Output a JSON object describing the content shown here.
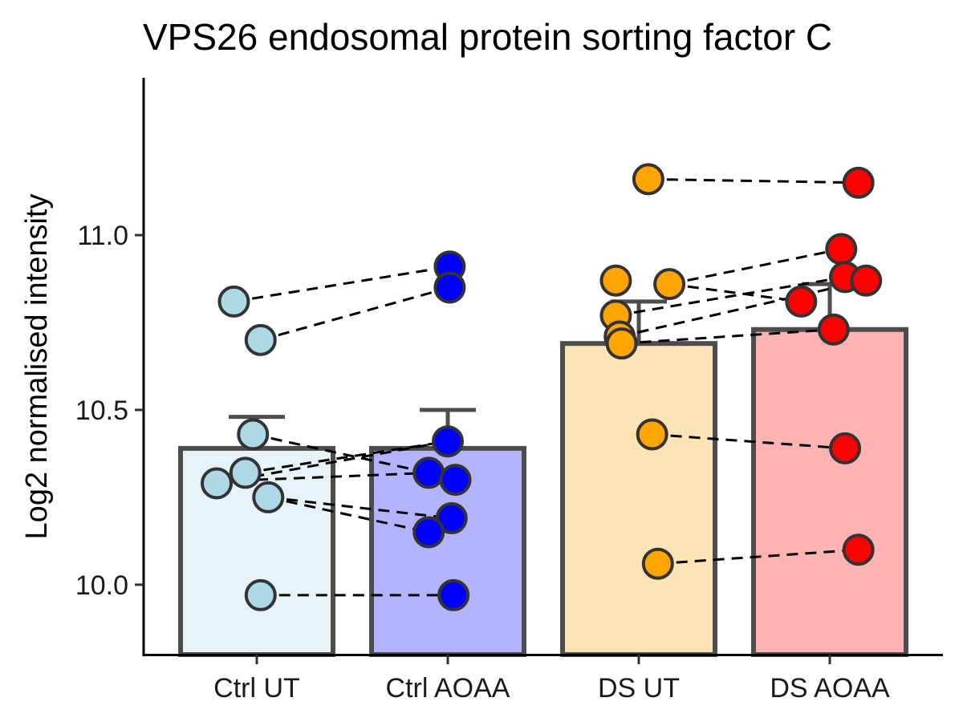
{
  "chart_data": {
    "type": "bar",
    "title": "VPS26 endosomal protein sorting factor C",
    "xlabel": "",
    "ylabel": "Log2 normalised intensity",
    "ylim": [
      9.8,
      11.45
    ],
    "yticks": [
      10.0,
      10.5,
      11.0
    ],
    "ytick_labels": [
      "10.0",
      "10.5",
      "11.0"
    ],
    "categories": [
      "Ctrl UT",
      "Ctrl AOAA",
      "DS UT",
      "DS AOAA"
    ],
    "bar_values": [
      10.39,
      10.39,
      10.69,
      10.73
    ],
    "error_upper": [
      10.48,
      10.5,
      10.81,
      10.86
    ],
    "bar_fill_colors": [
      "#e8f3f8",
      "#b3b3ff",
      "#fce4b4",
      "#ffb3b3"
    ],
    "point_colors": [
      "#add8e6",
      "#0000ff",
      "#ffa500",
      "#ff0000"
    ],
    "bar_edge_color": "#4d4d4d",
    "grid": false,
    "legend": "none",
    "points": [
      [
        10.81,
        10.7,
        10.43,
        10.32,
        10.29,
        10.25,
        9.97
      ],
      [
        10.91,
        10.85,
        10.41,
        10.32,
        10.3,
        10.19,
        10.15,
        9.97
      ],
      [
        11.16,
        10.87,
        10.86,
        10.77,
        10.71,
        10.69,
        10.43,
        10.06
      ],
      [
        11.15,
        10.96,
        10.88,
        10.87,
        10.81,
        10.73,
        10.39,
        10.1
      ]
    ],
    "pairs": [
      {
        "from": [
          0,
          10.81
        ],
        "to": [
          1,
          10.91
        ]
      },
      {
        "from": [
          0,
          10.7
        ],
        "to": [
          1,
          10.85
        ]
      },
      {
        "from": [
          0,
          10.43
        ],
        "to": [
          1,
          10.32
        ]
      },
      {
        "from": [
          0,
          10.32
        ],
        "to": [
          1,
          10.41
        ]
      },
      {
        "from": [
          0,
          10.3
        ],
        "to": [
          1,
          10.32
        ]
      },
      {
        "from": [
          0,
          10.29
        ],
        "to": [
          1,
          10.41
        ]
      },
      {
        "from": [
          0,
          10.25
        ],
        "to": [
          1,
          10.19
        ]
      },
      {
        "from": [
          0,
          10.25
        ],
        "to": [
          1,
          10.15
        ]
      },
      {
        "from": [
          0,
          9.97
        ],
        "to": [
          1,
          9.97
        ]
      },
      {
        "from": [
          2,
          11.16
        ],
        "to": [
          3,
          11.15
        ]
      },
      {
        "from": [
          2,
          10.86
        ],
        "to": [
          3,
          10.96
        ]
      },
      {
        "from": [
          2,
          10.86
        ],
        "to": [
          3,
          10.81
        ]
      },
      {
        "from": [
          2,
          10.77
        ],
        "to": [
          3,
          10.88
        ]
      },
      {
        "from": [
          2,
          10.71
        ],
        "to": [
          3,
          10.87
        ]
      },
      {
        "from": [
          2,
          10.69
        ],
        "to": [
          3,
          10.73
        ]
      },
      {
        "from": [
          2,
          10.43
        ],
        "to": [
          3,
          10.39
        ]
      },
      {
        "from": [
          2,
          10.06
        ],
        "to": [
          3,
          10.1
        ]
      }
    ],
    "jitter": [
      [
        -0.12,
        0.02,
        -0.02,
        -0.06,
        -0.21,
        0.06,
        0.02
      ],
      [
        0.01,
        0.01,
        0.0,
        -0.1,
        0.04,
        0.02,
        -0.1,
        0.03
      ],
      [
        0.05,
        -0.12,
        0.16,
        -0.12,
        -0.1,
        -0.09,
        0.07,
        0.1
      ],
      [
        0.15,
        0.06,
        0.08,
        0.19,
        -0.15,
        0.02,
        0.08,
        0.15
      ]
    ]
  }
}
